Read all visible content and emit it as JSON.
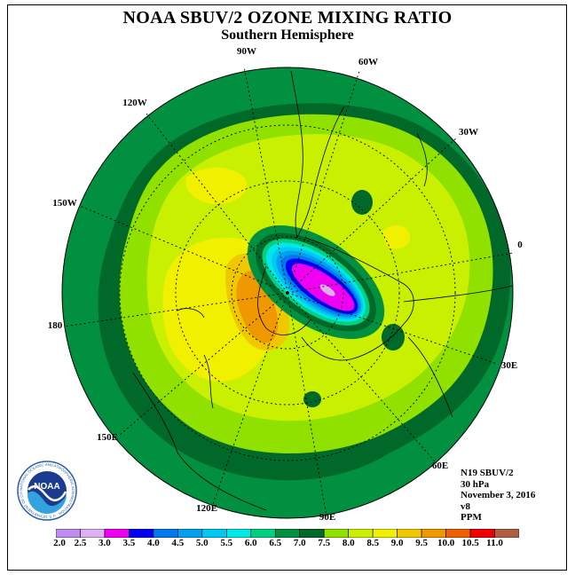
{
  "header": {
    "title": "NOAA SBUV/2 OZONE MIXING RATIO",
    "subtitle": "Southern Hemisphere"
  },
  "map": {
    "projection": "south polar stereographic",
    "longitude_labels": [
      "90W",
      "60W",
      "30W",
      "0",
      "30E",
      "60E",
      "90E",
      "120E",
      "150E",
      "180",
      "150W",
      "120W"
    ]
  },
  "info": {
    "satellite": "N19 SBUV/2",
    "level": "30 hPa",
    "date": "November 3, 2016",
    "version": "v8",
    "units": "PPM"
  },
  "logo": {
    "text": "NOAA",
    "ring_text": "NATIONAL OCEANIC AND ATMOSPHERIC ADMINISTRATION · U.S. DEPARTMENT OF COMMERCE"
  },
  "colorbar": {
    "labels": [
      "2.0",
      "2.5",
      "3.0",
      "3.5",
      "4.0",
      "4.5",
      "5.0",
      "5.5",
      "6.0",
      "6.5",
      "7.0",
      "7.5",
      "8.0",
      "8.5",
      "9.0",
      "9.5",
      "10.0",
      "10.5",
      "11.0"
    ],
    "colors": [
      "#c08cf0",
      "#e0b0f4",
      "#f000f0",
      "#0000f0",
      "#0078f0",
      "#00a0f0",
      "#00c8f0",
      "#00e8e8",
      "#00d080",
      "#009040",
      "#006828",
      "#90e000",
      "#c8f000",
      "#f0f000",
      "#f0c800",
      "#f09800",
      "#f06000",
      "#f00000",
      "#b06040"
    ]
  }
}
